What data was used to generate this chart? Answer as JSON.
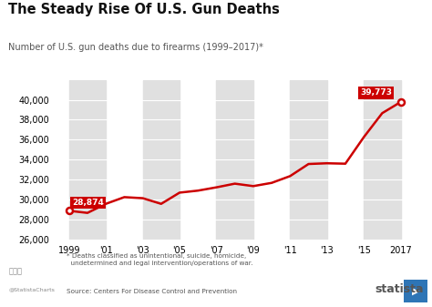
{
  "title": "The Steady Rise Of U.S. Gun Deaths",
  "subtitle": "Number of U.S. gun deaths due to firearms (1999–2017)*",
  "footnote": "* Deaths classified as unintentional, suicide, homicide,\n  undetermined and legal intervention/operations of war.",
  "source": "Source: Centers For Disease Control and Prevention",
  "years": [
    1999,
    2000,
    2001,
    2002,
    2003,
    2004,
    2005,
    2006,
    2007,
    2008,
    2009,
    2010,
    2011,
    2012,
    2013,
    2014,
    2015,
    2016,
    2017
  ],
  "values": [
    28874,
    28663,
    29573,
    30242,
    30136,
    29569,
    30694,
    30896,
    31224,
    31593,
    31347,
    31672,
    32351,
    33563,
    33636,
    33594,
    36252,
    38658,
    39773
  ],
  "line_color": "#cc0000",
  "marker_color": "#cc0000",
  "annotation_first_value": "28,874",
  "annotation_last_value": "39,773",
  "annotation_bg": "#cc0000",
  "annotation_text_color": "#ffffff",
  "bg_color": "#ffffff",
  "plot_bg_color": "#ffffff",
  "stripe_color": "#e0e0e0",
  "ylim_min": 26000,
  "ylim_max": 42000,
  "yticks": [
    26000,
    28000,
    30000,
    32000,
    34000,
    36000,
    38000,
    40000
  ],
  "xtick_labels": [
    "1999",
    "'01",
    "'03",
    "'05",
    "'07",
    "'09",
    "'11",
    "'13",
    "'15",
    "2017"
  ],
  "xtick_positions": [
    1999,
    2001,
    2003,
    2005,
    2007,
    2009,
    2011,
    2013,
    2015,
    2017
  ],
  "stripe_starts": [
    1999,
    2003,
    2007,
    2011,
    2015
  ],
  "stripe_ends": [
    2001,
    2005,
    2009,
    2013,
    2017
  ]
}
